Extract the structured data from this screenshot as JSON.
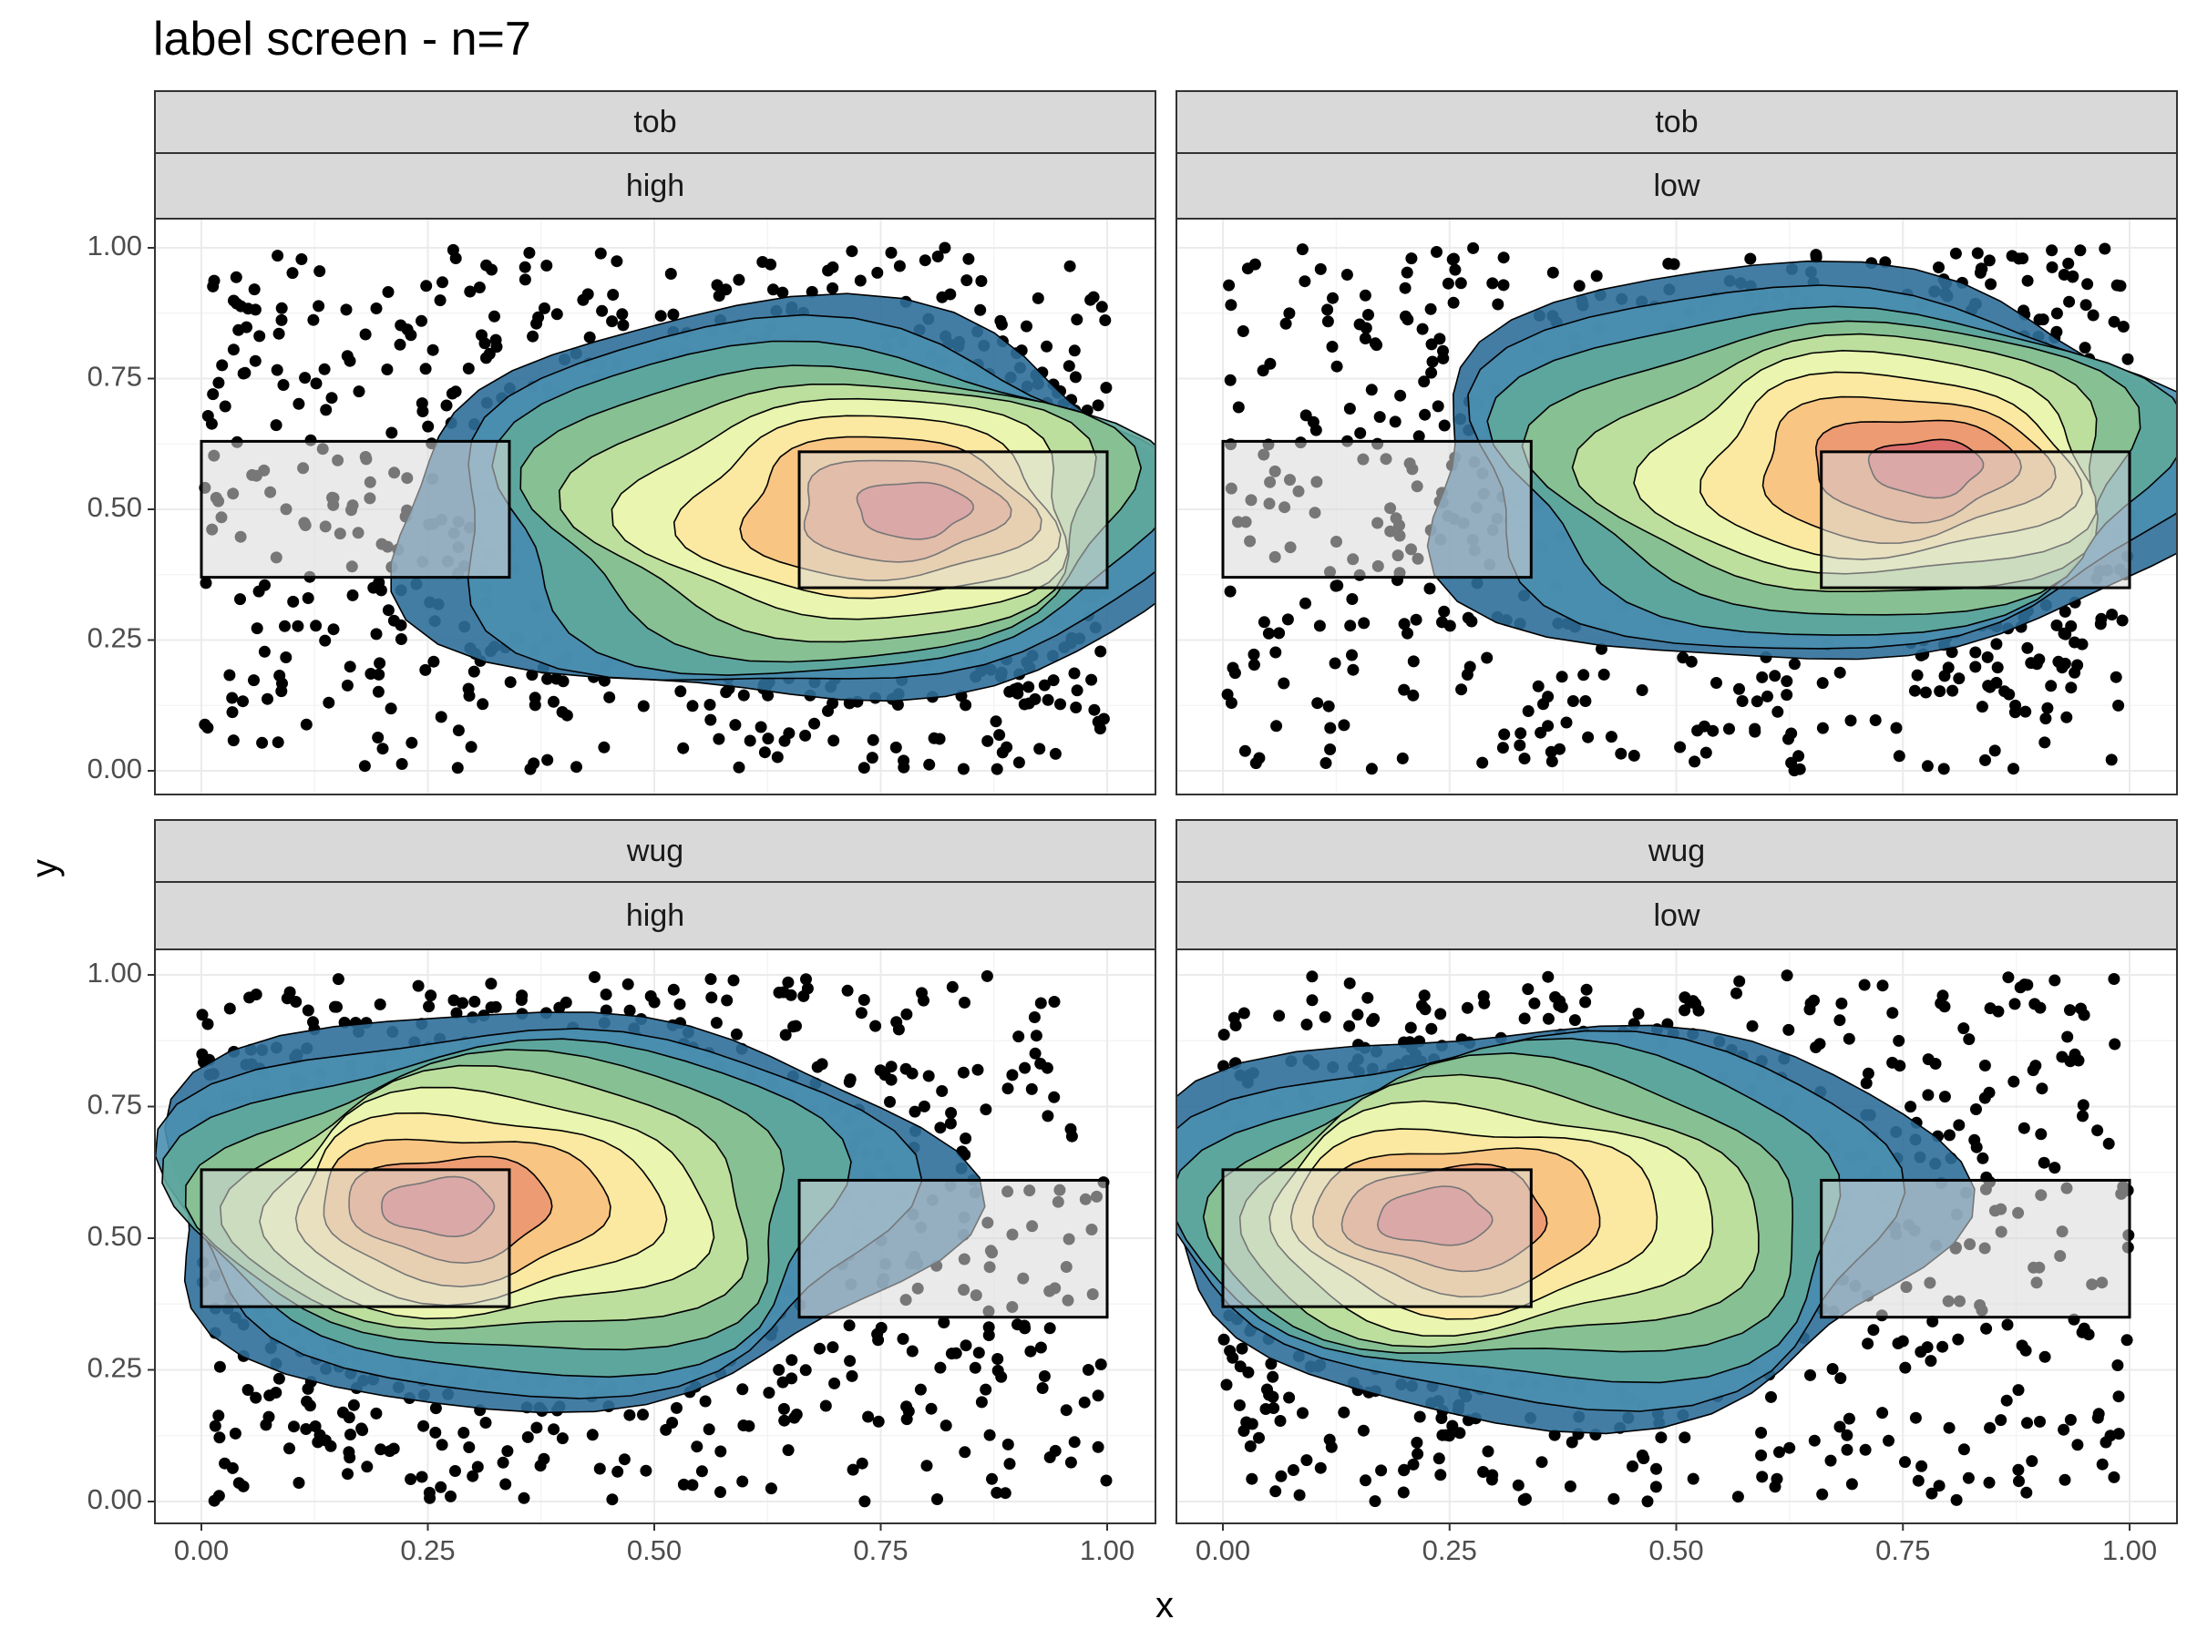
{
  "chart_data": {
    "type": "scatter",
    "title": "label screen - n=7",
    "xlabel": "x",
    "ylabel": "y",
    "xlim": [
      0,
      1
    ],
    "ylim": [
      0,
      1
    ],
    "x_ticks": [
      "0.00",
      "0.25",
      "0.50",
      "0.75",
      "1.00"
    ],
    "y_ticks": [
      "0.00",
      "0.25",
      "0.50",
      "0.75",
      "1.00"
    ],
    "layers": [
      "scatter points",
      "2D density filled contours (spectral palette)",
      "translucent grey rectangles"
    ],
    "grid": true,
    "colors": {
      "points": "#000000",
      "rect_fill": "#d9d9d9",
      "density_palette": [
        "#2f6f9a",
        "#4a8fb0",
        "#5fa89c",
        "#8cc391",
        "#c3e2a0",
        "#eef7b0",
        "#fde8a0",
        "#f7c17f",
        "#eb9670",
        "#d8696a"
      ]
    },
    "panels": [
      {
        "strip_top": "tob",
        "strip_bottom": "high",
        "peak": [
          0.8,
          0.5
        ],
        "rectangles": [
          {
            "xmin": 0.0,
            "xmax": 0.34,
            "ymin": 0.37,
            "ymax": 0.63
          },
          {
            "xmin": 0.66,
            "xmax": 1.0,
            "ymin": 0.35,
            "ymax": 0.61
          }
        ]
      },
      {
        "strip_top": "tob",
        "strip_bottom": "low",
        "peak": [
          0.79,
          0.58
        ],
        "rectangles": [
          {
            "xmin": 0.0,
            "xmax": 0.34,
            "ymin": 0.37,
            "ymax": 0.63
          },
          {
            "xmin": 0.66,
            "xmax": 1.0,
            "ymin": 0.35,
            "ymax": 0.61
          }
        ]
      },
      {
        "strip_top": "wug",
        "strip_bottom": "high",
        "peak": [
          0.25,
          0.56
        ],
        "rectangles": [
          {
            "xmin": 0.0,
            "xmax": 0.34,
            "ymin": 0.37,
            "ymax": 0.63
          },
          {
            "xmin": 0.66,
            "xmax": 1.0,
            "ymin": 0.35,
            "ymax": 0.61
          }
        ]
      },
      {
        "strip_top": "wug",
        "strip_bottom": "low",
        "peak": [
          0.22,
          0.54
        ],
        "rectangles": [
          {
            "xmin": 0.0,
            "xmax": 0.34,
            "ymin": 0.37,
            "ymax": 0.63
          },
          {
            "xmin": 0.66,
            "xmax": 1.0,
            "ymin": 0.35,
            "ymax": 0.61
          }
        ]
      }
    ]
  }
}
